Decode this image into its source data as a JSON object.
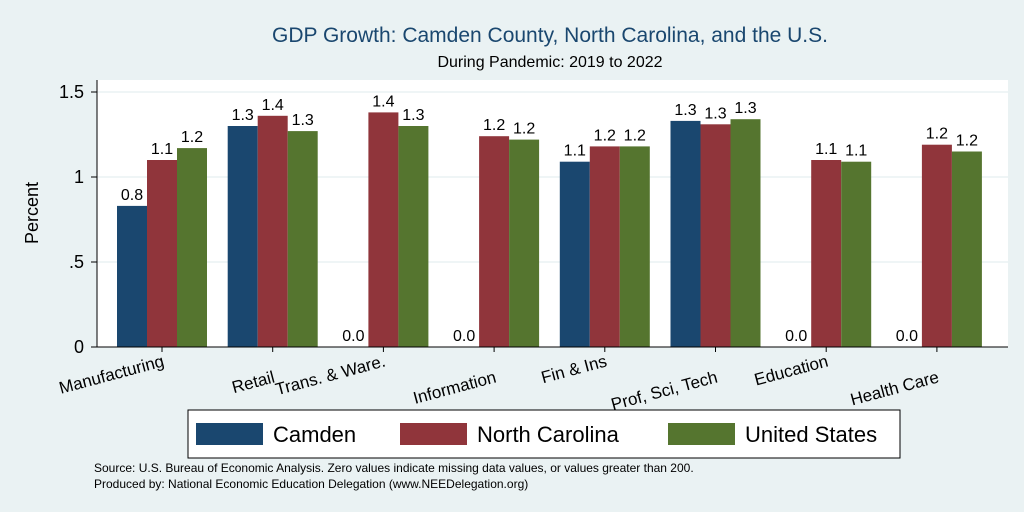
{
  "chart_data": {
    "type": "bar",
    "title": "GDP Growth: Camden County, North Carolina, and the U.S.",
    "subtitle": "During Pandemic: 2019 to 2022",
    "ylabel": "Percent",
    "ylim": [
      0,
      1.6
    ],
    "yticks": [
      0,
      0.5,
      1,
      1.5
    ],
    "ytick_labels": [
      "0",
      ".5",
      "1",
      "1.5"
    ],
    "grid": true,
    "legend_position": "bottom",
    "categories": [
      "Manufacturing",
      "Retail",
      "Trans. & Ware.",
      "Information",
      "Fin & Ins",
      "Prof, Sci, Tech",
      "Education",
      "Health Care"
    ],
    "series": [
      {
        "name": "Camden",
        "color": "#1a476f",
        "values": [
          0.83,
          1.3,
          0,
          0,
          1.09,
          1.33,
          0,
          0
        ],
        "labels": [
          "0.8",
          "1.3",
          "0.0",
          "0.0",
          "1.1",
          "1.3",
          "0.0",
          "0.0"
        ]
      },
      {
        "name": "North Carolina",
        "color": "#90353b",
        "values": [
          1.1,
          1.36,
          1.38,
          1.24,
          1.18,
          1.31,
          1.1,
          1.19
        ],
        "labels": [
          "1.1",
          "1.4",
          "1.4",
          "1.2",
          "1.2",
          "1.3",
          "1.1",
          "1.2"
        ]
      },
      {
        "name": "United States",
        "color": "#55752f",
        "values": [
          1.17,
          1.27,
          1.3,
          1.22,
          1.18,
          1.34,
          1.09,
          1.15
        ],
        "labels": [
          "1.2",
          "1.3",
          "1.3",
          "1.2",
          "1.2",
          "1.3",
          "1.1",
          "1.2"
        ]
      }
    ],
    "notes": [
      "Source: U.S. Bureau of Economic Analysis. Zero values indicate missing data values, or values greater than 200.",
      "Produced by: National Economic Education Delegation (www.NEEDelegation.org)"
    ]
  }
}
